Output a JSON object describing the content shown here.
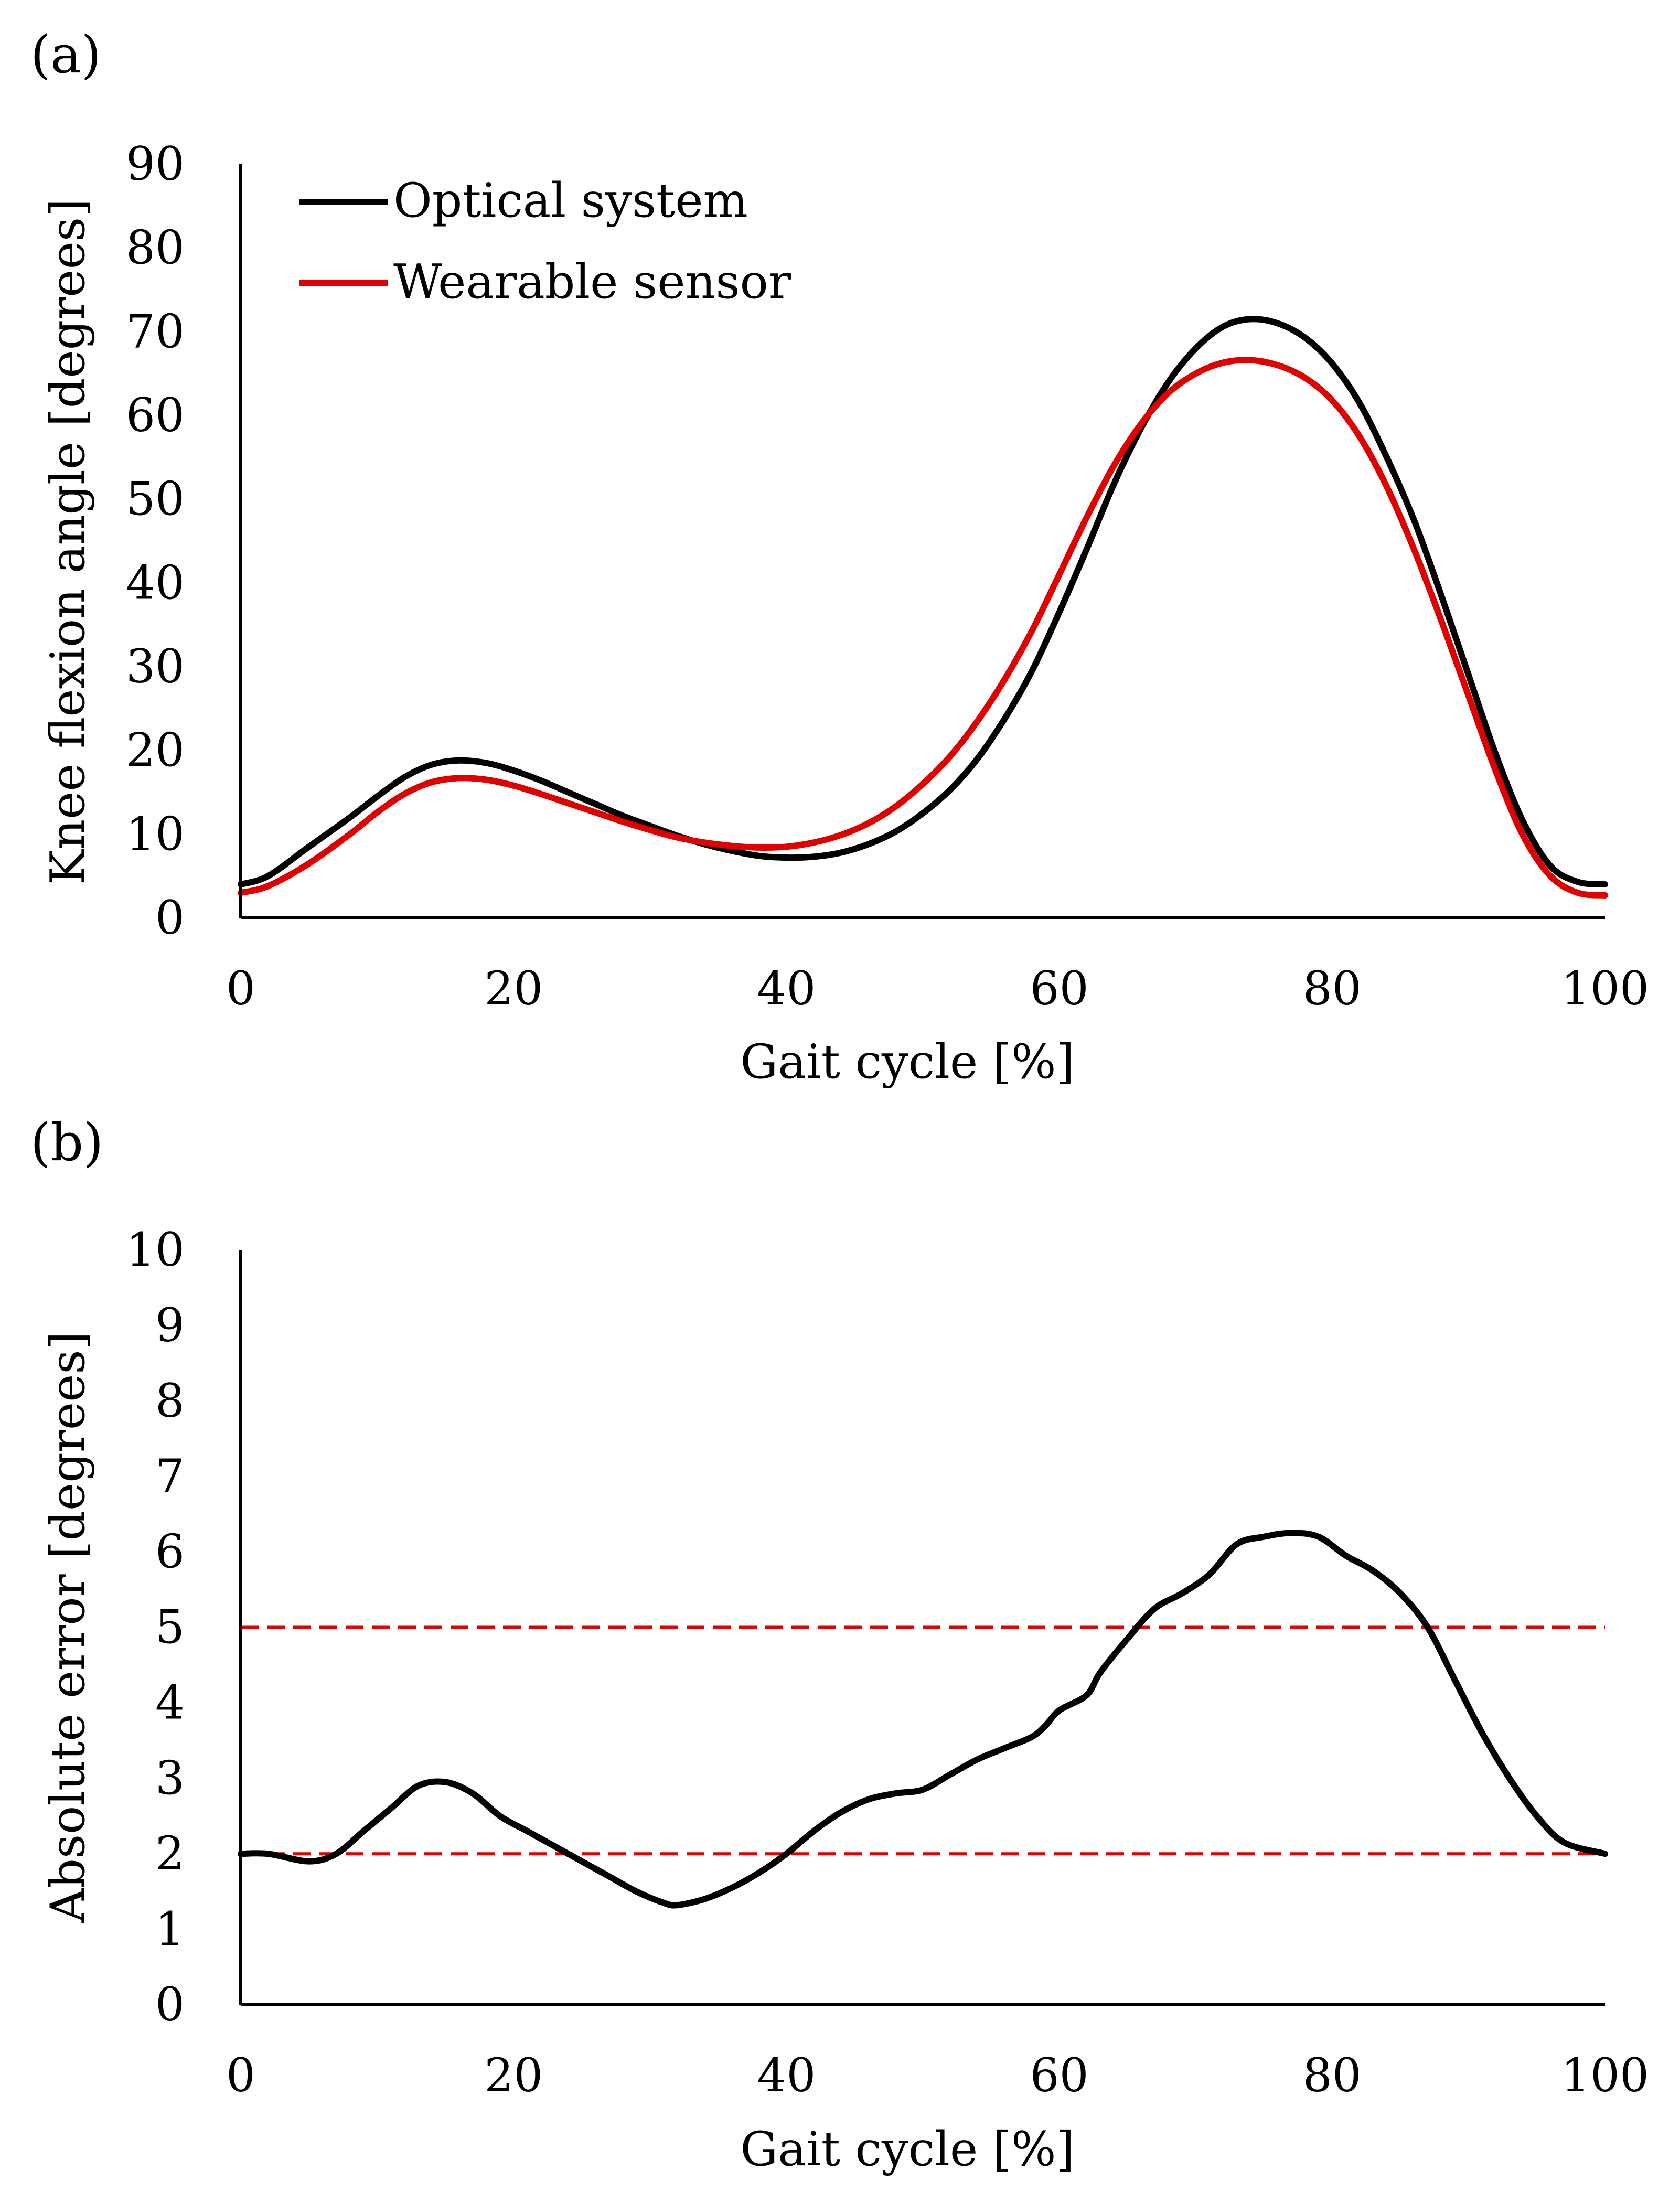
{
  "chart_data": [
    {
      "panel_label": "(a)",
      "type": "line",
      "xlabel": "Gait cycle [%]",
      "ylabel": "Knee flexion angle [degrees]",
      "xlim": [
        0,
        100
      ],
      "ylim": [
        0,
        90
      ],
      "xticks": [
        "0",
        "20",
        "40",
        "60",
        "80",
        "100"
      ],
      "yticks": [
        "0",
        "10",
        "20",
        "30",
        "40",
        "50",
        "60",
        "70",
        "80",
        "90"
      ],
      "grid": false,
      "legend_position": "top-left",
      "series": [
        {
          "name": "Optical system",
          "color": "#000000",
          "x": [
            0,
            2,
            5,
            8,
            10,
            12,
            14,
            16,
            18,
            20,
            22,
            24,
            26,
            28,
            30,
            32,
            34,
            36,
            38,
            40,
            42,
            44,
            46,
            48,
            50,
            52,
            54,
            56,
            58,
            60,
            62,
            64,
            66,
            68,
            70,
            72,
            74,
            76,
            78,
            80,
            82,
            84,
            86,
            88,
            90,
            92,
            94,
            96,
            98,
            100
          ],
          "y": [
            4.0,
            5.0,
            8.5,
            12.0,
            14.5,
            16.8,
            18.3,
            18.8,
            18.5,
            17.6,
            16.4,
            15.0,
            13.6,
            12.2,
            11.0,
            9.8,
            8.8,
            8.0,
            7.4,
            7.2,
            7.3,
            7.8,
            8.8,
            10.3,
            12.5,
            15.3,
            19.0,
            23.8,
            29.5,
            36.5,
            44.0,
            51.8,
            58.5,
            64.0,
            68.0,
            70.6,
            71.5,
            71.0,
            69.3,
            66.2,
            61.5,
            55.0,
            47.5,
            38.5,
            29.0,
            19.5,
            11.5,
            6.2,
            4.3,
            4.0
          ]
        },
        {
          "name": "Wearable sensor",
          "color": "#e00000",
          "x": [
            0,
            2,
            5,
            8,
            10,
            12,
            14,
            16,
            18,
            20,
            22,
            24,
            26,
            28,
            30,
            32,
            34,
            36,
            38,
            40,
            42,
            44,
            46,
            48,
            50,
            52,
            54,
            56,
            58,
            60,
            62,
            64,
            66,
            68,
            70,
            72,
            74,
            76,
            78,
            80,
            82,
            84,
            86,
            88,
            90,
            92,
            94,
            96,
            98,
            100
          ],
          "y": [
            3.0,
            3.8,
            6.5,
            10.0,
            12.6,
            14.8,
            16.2,
            16.7,
            16.5,
            15.8,
            14.8,
            13.7,
            12.6,
            11.5,
            10.5,
            9.6,
            9.0,
            8.6,
            8.4,
            8.5,
            9.0,
            9.9,
            11.3,
            13.3,
            16.0,
            19.3,
            23.5,
            28.5,
            34.3,
            41.0,
            47.8,
            54.0,
            59.0,
            62.7,
            65.0,
            66.3,
            66.6,
            66.0,
            64.5,
            61.8,
            57.5,
            51.5,
            44.0,
            35.5,
            26.5,
            17.5,
            9.8,
            5.0,
            3.0,
            2.7
          ]
        }
      ]
    },
    {
      "panel_label": "(b)",
      "type": "line",
      "xlabel": "Gait cycle [%]",
      "ylabel": "Absolute error [degrees]",
      "xlim": [
        0,
        100
      ],
      "ylim": [
        0,
        10
      ],
      "xticks": [
        "0",
        "20",
        "40",
        "60",
        "80",
        "100"
      ],
      "yticks": [
        "0",
        "1",
        "2",
        "3",
        "4",
        "5",
        "6",
        "7",
        "8",
        "9",
        "10"
      ],
      "grid": false,
      "reference_lines": [
        {
          "y": 2,
          "color": "#e00000",
          "style": "dashed"
        },
        {
          "y": 5,
          "color": "#e00000",
          "style": "dashed"
        }
      ],
      "series": [
        {
          "color": "#000000",
          "x": [
            0,
            2,
            5,
            7,
            9,
            11,
            13,
            15,
            17,
            19,
            21,
            23,
            25,
            27,
            29,
            31,
            32,
            34,
            36,
            38,
            40,
            42,
            44,
            46,
            48,
            50,
            52,
            54,
            56,
            58,
            59,
            60,
            62,
            63,
            65,
            67,
            69,
            71,
            73,
            75,
            77,
            79,
            81,
            83,
            85,
            87,
            89,
            91,
            93,
            95,
            97,
            100
          ],
          "y": [
            2.0,
            2.0,
            1.9,
            2.0,
            2.3,
            2.6,
            2.9,
            2.95,
            2.8,
            2.5,
            2.3,
            2.1,
            1.9,
            1.7,
            1.5,
            1.35,
            1.32,
            1.4,
            1.55,
            1.75,
            2.0,
            2.3,
            2.55,
            2.72,
            2.8,
            2.85,
            3.05,
            3.25,
            3.4,
            3.55,
            3.7,
            3.9,
            4.1,
            4.4,
            4.85,
            5.25,
            5.45,
            5.7,
            6.1,
            6.2,
            6.25,
            6.2,
            5.95,
            5.75,
            5.45,
            5.0,
            4.3,
            3.6,
            3.0,
            2.5,
            2.15,
            2.0
          ]
        }
      ]
    }
  ]
}
